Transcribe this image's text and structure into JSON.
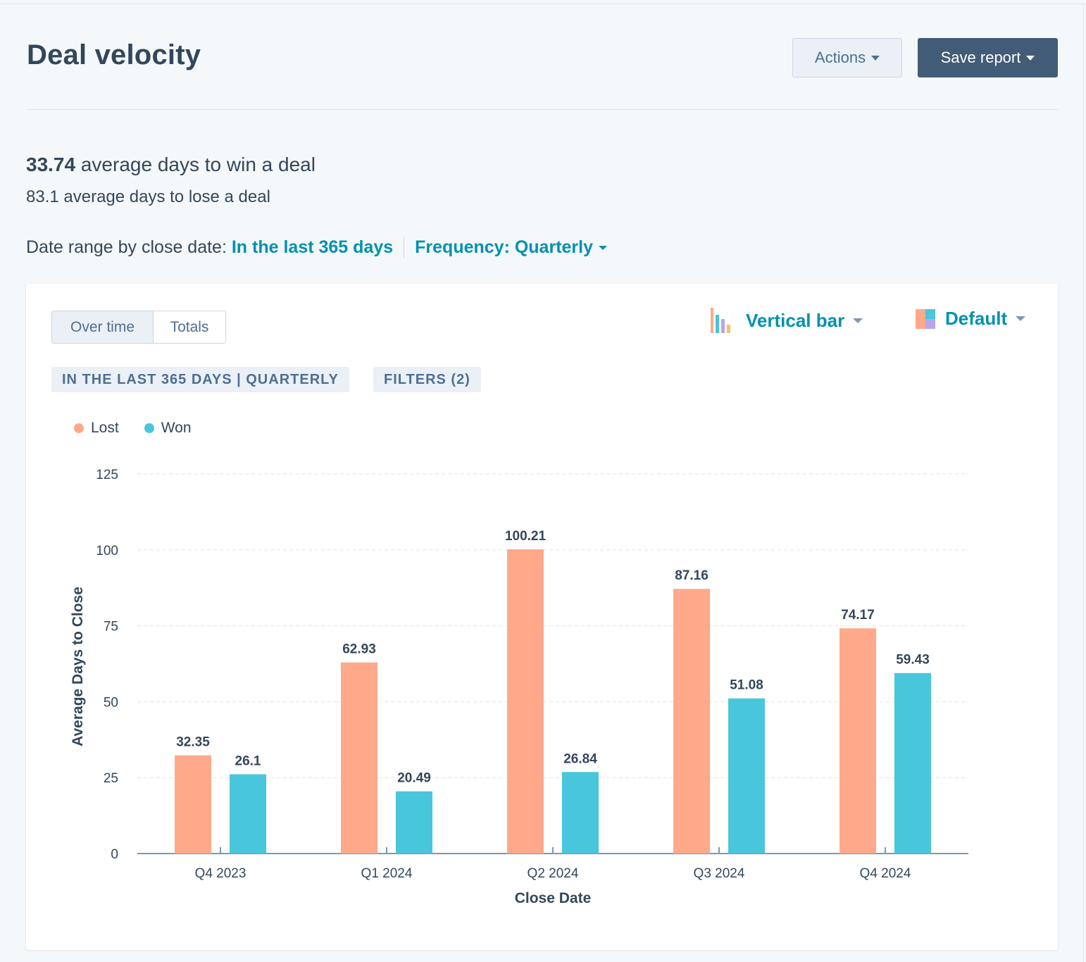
{
  "header": {
    "title": "Deal velocity",
    "actions_label": "Actions",
    "save_label": "Save report"
  },
  "kpis": {
    "win_value": "33.74",
    "win_text": "average days to win a deal",
    "lose_text": "83.1 average days to lose a deal"
  },
  "filters_bar": {
    "date_label": "Date range by close date: ",
    "date_value": "In the last 365 days",
    "frequency_label": "Frequency: Quarterly"
  },
  "card": {
    "view_tabs": [
      "Over time",
      "Totals"
    ],
    "chart_type_label": "Vertical bar",
    "color_label": "Default",
    "tag_range": "IN THE LAST 365 DAYS | QUARTERLY",
    "tag_filters": "FILTERS (2)"
  },
  "colors": {
    "lost": "#ffa98a",
    "won": "#48c6db",
    "accent": "#0091ae",
    "primary_button": "#425b76"
  },
  "chart_data": {
    "type": "bar",
    "xlabel": "Close Date",
    "ylabel": "Average Days to Close",
    "categories": [
      "Q4 2023",
      "Q1 2024",
      "Q2 2024",
      "Q3 2024",
      "Q4 2024"
    ],
    "series": [
      {
        "name": "Lost",
        "color": "#ffa98a",
        "values": [
          32.35,
          62.93,
          100.21,
          87.16,
          74.17
        ]
      },
      {
        "name": "Won",
        "color": "#48c6db",
        "values": [
          26.1,
          20.49,
          26.84,
          51.08,
          59.43
        ]
      }
    ],
    "ylim": [
      0,
      125
    ],
    "yticks": [
      0,
      25,
      50,
      75,
      100,
      125
    ],
    "grid": true,
    "legend": "top-left"
  }
}
